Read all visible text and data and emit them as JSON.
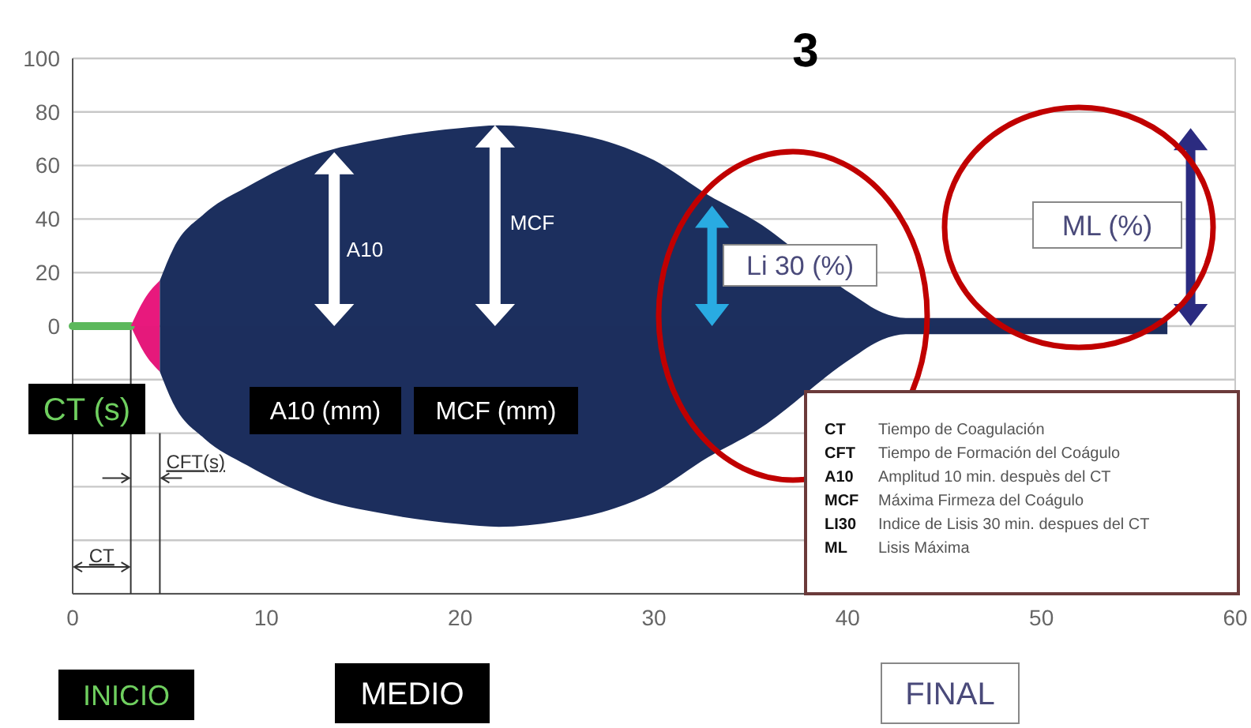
{
  "chart_data": {
    "type": "area",
    "title": "3",
    "xlim": [
      0,
      60
    ],
    "xticks": [
      0,
      10,
      20,
      30,
      40,
      50,
      60
    ],
    "ylim": [
      -100,
      100
    ],
    "yticks": [
      {
        "value": -100,
        "label": null
      },
      {
        "value": -80,
        "label": null
      },
      {
        "value": -60,
        "label": null
      },
      {
        "value": -40,
        "label": null
      },
      {
        "value": -20,
        "label": null
      },
      0,
      20,
      40,
      60,
      80,
      100
    ],
    "grid": "y",
    "series": [
      {
        "type": "line",
        "color": "#5cb85c",
        "x": [
          0,
          3
        ],
        "values": [
          0,
          0
        ]
      },
      {
        "color": "#e8197d",
        "x": [
          3,
          3.7,
          4.5
        ],
        "values": [
          0,
          10,
          17
        ]
      },
      {
        "color": "#1c2f5e",
        "x": [
          4.5,
          5.2,
          6.8,
          9,
          12.5,
          16,
          20,
          22,
          25,
          28,
          30,
          32.8,
          35.3,
          40.2,
          41.8,
          43,
          50,
          56.5
        ],
        "values": [
          17,
          29,
          42,
          52,
          64,
          70,
          74,
          75,
          73,
          68,
          62,
          49,
          39,
          12,
          5,
          3,
          3,
          3
        ]
      }
    ],
    "ref_lines": [
      {
        "axis": "x",
        "value": 3,
        "label": "CT"
      },
      {
        "axis": "x",
        "value": 4.5,
        "label": "CFT(s)"
      }
    ],
    "annotations": [
      "A10",
      "MCF",
      "Li 30 (%)",
      "ML (%)",
      "CT (s)",
      "A10 (mm)",
      "MCF (mm)",
      "INICIO",
      "MEDIO",
      "FINAL",
      "CT",
      "Tiempo de Coagulación",
      "CFT",
      "Tiempo de Formación del Coágulo",
      "A10",
      "Amplitud 10 min. despuès del CT",
      "MCF",
      "Máxima Firmeza del Coágulo",
      "LI30",
      "Indice de Lisis 30 min. despues del CT",
      "ML",
      "Lisis Máxima"
    ]
  }
}
